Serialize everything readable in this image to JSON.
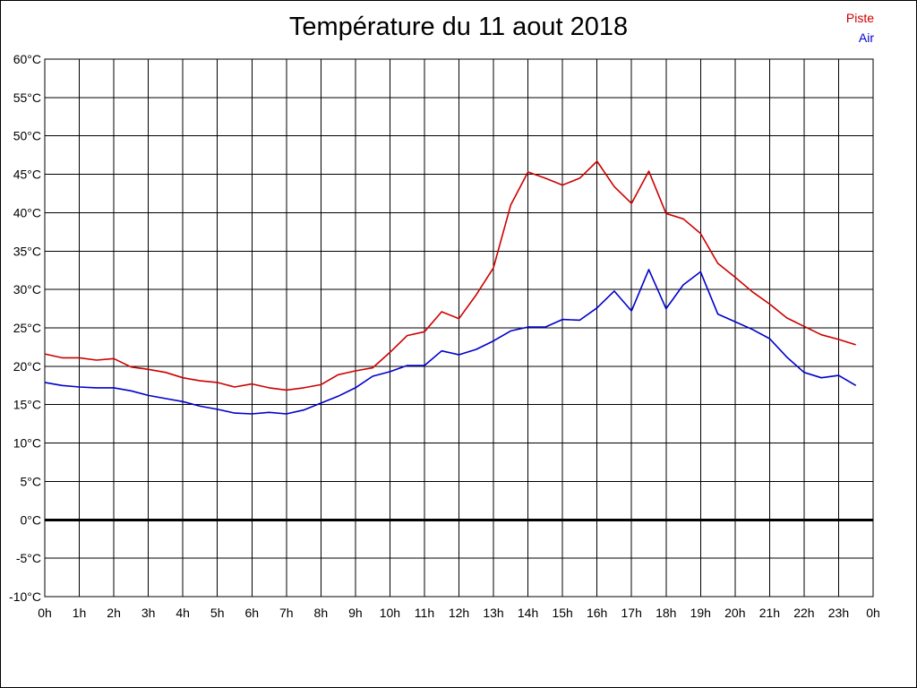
{
  "chart_data": {
    "type": "line",
    "title": "Température du 11 aout 2018",
    "xlabel": "",
    "ylabel": "",
    "x_ticks": [
      "0h",
      "1h",
      "2h",
      "3h",
      "4h",
      "5h",
      "6h",
      "7h",
      "8h",
      "9h",
      "10h",
      "11h",
      "12h",
      "13h",
      "14h",
      "15h",
      "16h",
      "17h",
      "18h",
      "19h",
      "20h",
      "21h",
      "22h",
      "23h",
      "0h"
    ],
    "y_ticks": [
      "60°C",
      "55°C",
      "50°C",
      "45°C",
      "40°C",
      "35°C",
      "30°C",
      "25°C",
      "20°C",
      "15°C",
      "10°C",
      "5°C",
      "0°C",
      "-5°C",
      "-10°C"
    ],
    "xlim": [
      0,
      24
    ],
    "ylim": [
      -10,
      60
    ],
    "grid": true,
    "legend_position": "top-right",
    "x": [
      0,
      0.5,
      1,
      1.5,
      2,
      2.5,
      3,
      3.5,
      4,
      4.5,
      5,
      5.5,
      6,
      6.5,
      7,
      7.5,
      8,
      8.5,
      9,
      9.5,
      10,
      10.5,
      11,
      11.5,
      12,
      12.5,
      13,
      13.5,
      14,
      14.5,
      15,
      15.5,
      16,
      16.5,
      17,
      17.5,
      18,
      18.5,
      19,
      19.5,
      20,
      20.5,
      21,
      21.5,
      22,
      22.5,
      23,
      23.5
    ],
    "series": [
      {
        "name": "Piste",
        "color": "#cc0000",
        "values": [
          21.6,
          21.1,
          21.1,
          20.8,
          21.0,
          19.9,
          19.6,
          19.2,
          18.5,
          18.1,
          17.9,
          17.3,
          17.7,
          17.2,
          16.9,
          17.2,
          17.6,
          18.9,
          19.4,
          19.8,
          21.8,
          24.0,
          24.5,
          27.1,
          26.2,
          29.3,
          32.8,
          41.0,
          45.3,
          44.5,
          43.6,
          44.5,
          46.7,
          43.4,
          41.2,
          45.4,
          39.9,
          39.2,
          37.3,
          33.4,
          31.6,
          29.7,
          28.1,
          26.3,
          25.2,
          24.1,
          23.5,
          22.8
        ]
      },
      {
        "name": "Air",
        "color": "#0000cc",
        "values": [
          17.9,
          17.5,
          17.3,
          17.2,
          17.2,
          16.8,
          16.2,
          15.8,
          15.4,
          14.8,
          14.4,
          13.9,
          13.8,
          14.0,
          13.8,
          14.3,
          15.2,
          16.1,
          17.2,
          18.7,
          19.3,
          20.1,
          20.1,
          22.0,
          21.5,
          22.2,
          23.3,
          24.6,
          25.1,
          25.1,
          26.1,
          26.0,
          27.6,
          29.8,
          27.2,
          32.6,
          27.5,
          30.6,
          32.3,
          26.8,
          25.8,
          24.8,
          23.6,
          21.2,
          19.2,
          18.5,
          18.8,
          17.5
        ]
      }
    ]
  }
}
